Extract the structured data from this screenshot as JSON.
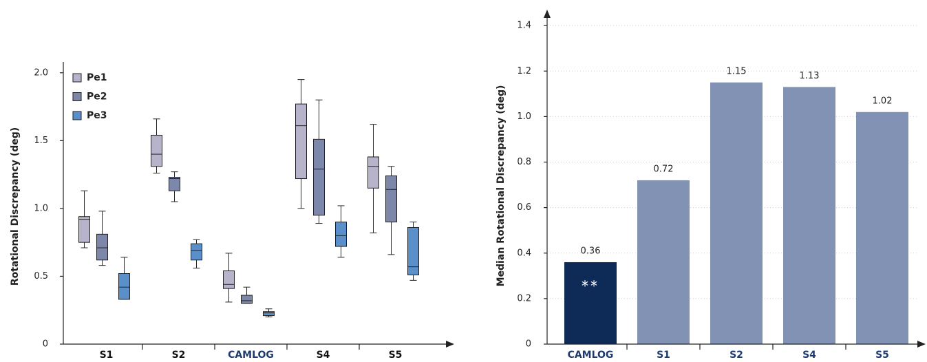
{
  "chart_data": [
    {
      "type": "box",
      "y_label": "Rotational Discrepancy (deg)",
      "categories": [
        "S1",
        "S2",
        "CAMLOG",
        "S4",
        "S5"
      ],
      "ylim": [
        0,
        2.08
      ],
      "yticks": [
        0,
        0.5,
        {
          "value": 1.0,
          "label": "1.0"
        },
        1.5,
        {
          "value": 2.0,
          "label": "2.0"
        }
      ],
      "legend": "top-left",
      "series": [
        {
          "name": "Pe1",
          "color": "#b6b3ca",
          "low": [
            0.71,
            1.26,
            0.31,
            1.0,
            0.82
          ],
          "q1": [
            0.75,
            1.31,
            0.41,
            1.22,
            1.15
          ],
          "median": [
            0.92,
            1.4,
            0.44,
            1.61,
            1.31
          ],
          "q3": [
            0.94,
            1.54,
            0.54,
            1.77,
            1.38
          ],
          "high": [
            1.13,
            1.66,
            0.67,
            1.95,
            1.62
          ]
        },
        {
          "name": "Pe2",
          "color": "#7c87aa",
          "low": [
            0.58,
            1.05,
            0.3,
            0.89,
            0.66
          ],
          "q1": [
            0.62,
            1.13,
            0.3,
            0.95,
            0.9
          ],
          "median": [
            0.71,
            1.22,
            0.32,
            1.29,
            1.14
          ],
          "q3": [
            0.81,
            1.23,
            0.36,
            1.51,
            1.24
          ],
          "high": [
            0.98,
            1.27,
            0.42,
            1.8,
            1.31
          ]
        },
        {
          "name": "Pe3",
          "color": "#5b8fca",
          "low": [
            0.33,
            0.56,
            0.2,
            0.64,
            0.47
          ],
          "q1": [
            0.33,
            0.62,
            0.21,
            0.72,
            0.51
          ],
          "median": [
            0.42,
            0.69,
            0.23,
            0.8,
            0.57
          ],
          "q3": [
            0.52,
            0.74,
            0.24,
            0.9,
            0.86
          ],
          "high": [
            0.64,
            0.77,
            0.26,
            1.02,
            0.9
          ]
        }
      ]
    },
    {
      "type": "bar",
      "y_label": "Median Rotational Discrepancy (deg)",
      "categories": [
        "CAMLOG",
        "S1",
        "S2",
        "S4",
        "S5"
      ],
      "values": [
        0.36,
        0.72,
        1.15,
        1.13,
        1.02
      ],
      "colors": [
        "#0e2a56",
        "#8292b4",
        "#8292b4",
        "#8292b4",
        "#8292b4"
      ],
      "annotation": "**",
      "ylim": [
        0,
        1.47
      ],
      "yticks": [
        0,
        0.2,
        0.4,
        0.6,
        0.8,
        {
          "value": 1.0,
          "label": "1.0"
        },
        1.2,
        1.4
      ],
      "grid": true
    }
  ]
}
